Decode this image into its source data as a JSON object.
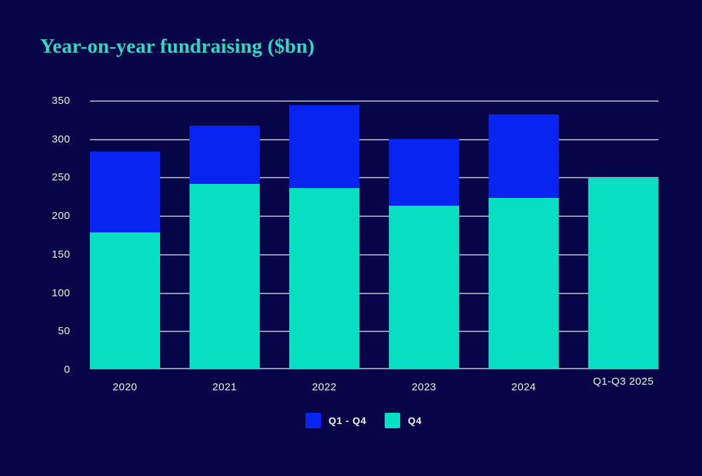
{
  "title": "Year-on-year fundraising ($bn)",
  "colors": {
    "background": "#060547",
    "bar_blue": "#0724f0",
    "bar_teal": "#08dfc2",
    "title_text": "#2ed9c6",
    "gridline": "#9795b6",
    "axis_text": "#f4f1ea",
    "legend_text": "#f4f1ea"
  },
  "chart_data": {
    "type": "bar",
    "stacked": true,
    "title": "Year-on-year fundraising ($bn)",
    "categories": [
      "2020",
      "2021",
      "2022",
      "2023",
      "2024",
      "Q1-Q3 2025"
    ],
    "series": [
      {
        "name": "Q4",
        "color": "#08dfc2",
        "values": [
          178,
          241,
          236,
          213,
          223,
          249
        ]
      },
      {
        "name": "Q1 - Q4",
        "color": "#0724f0",
        "values": [
          105,
          76,
          108,
          87,
          109,
          0
        ]
      }
    ],
    "totals": [
      283,
      317,
      344,
      300,
      332,
      249
    ],
    "ylim": [
      0,
      350
    ],
    "yticks": [
      0,
      50,
      100,
      150,
      200,
      250,
      300,
      350
    ],
    "grid": "horizontal",
    "xlabel": "",
    "ylabel": "",
    "legend": {
      "position": "bottom",
      "items": [
        {
          "label": "Q1 - Q4",
          "color": "#0724f0"
        },
        {
          "label": "Q4",
          "color": "#08dfc2"
        }
      ]
    }
  }
}
